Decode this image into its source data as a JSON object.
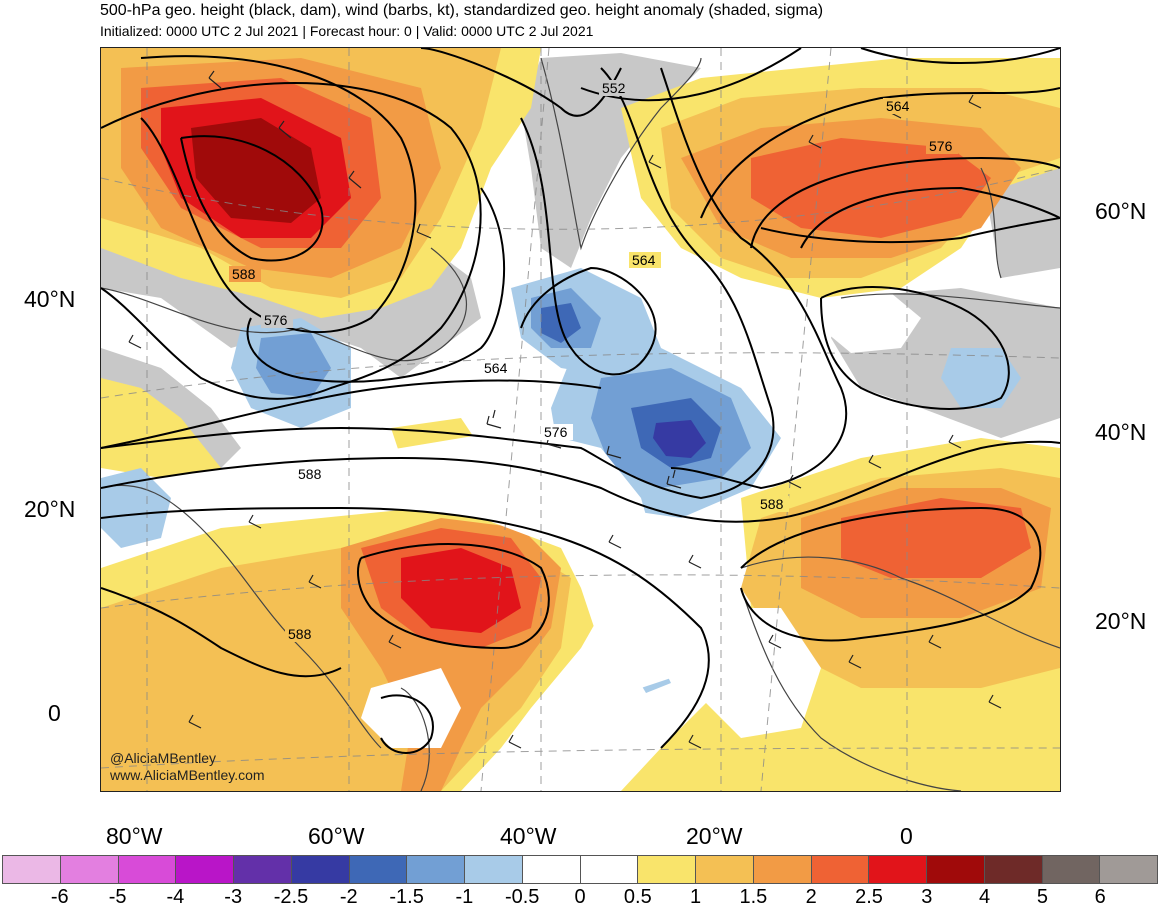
{
  "title": "500-hPa geo. height (black, dam), wind (barbs, kt), standardized geo. height anomaly (shaded, sigma)",
  "subtitle": "Initialized: 0000 UTC 2 Jul 2021 | Forecast hour: 0 | Valid: 0000 UTC 2 Jul 2021",
  "watermark": {
    "handle": "@AliciaMBentley",
    "site": "www.AliciaMBentley.com"
  },
  "lat_labels_left": [
    "40°N",
    "20°N",
    "0"
  ],
  "lat_labels_right": [
    "60°N",
    "40°N",
    "20°N"
  ],
  "lon_labels": [
    "80°W",
    "60°W",
    "40°W",
    "20°W",
    "0"
  ],
  "contour_labels": [
    "552",
    "564",
    "576",
    "564",
    "588",
    "576",
    "564",
    "576",
    "588",
    "588",
    "588"
  ],
  "colorbar": {
    "colors": [
      "#ebb8e6",
      "#e37fe0",
      "#d84bd8",
      "#b915c8",
      "#6330a9",
      "#363aa3",
      "#3e68b6",
      "#729fd4",
      "#a8cbe8",
      "#ffffff",
      "#ffffff",
      "#f9e46b",
      "#f4c054",
      "#f29b45",
      "#ef6234",
      "#e1141a",
      "#a00a0a",
      "#6e2a28",
      "#716561",
      "#a09a97"
    ],
    "labels": [
      "-6",
      "-5",
      "-4",
      "-3",
      "-2.5",
      "-2",
      "-1.5",
      "-1",
      "-0.5",
      "0",
      "0.5",
      "1",
      "1.5",
      "2",
      "2.5",
      "3",
      "4",
      "5",
      "6"
    ]
  },
  "colors": {
    "land_neutral": "#c8c8c8",
    "frame": "#222222"
  }
}
